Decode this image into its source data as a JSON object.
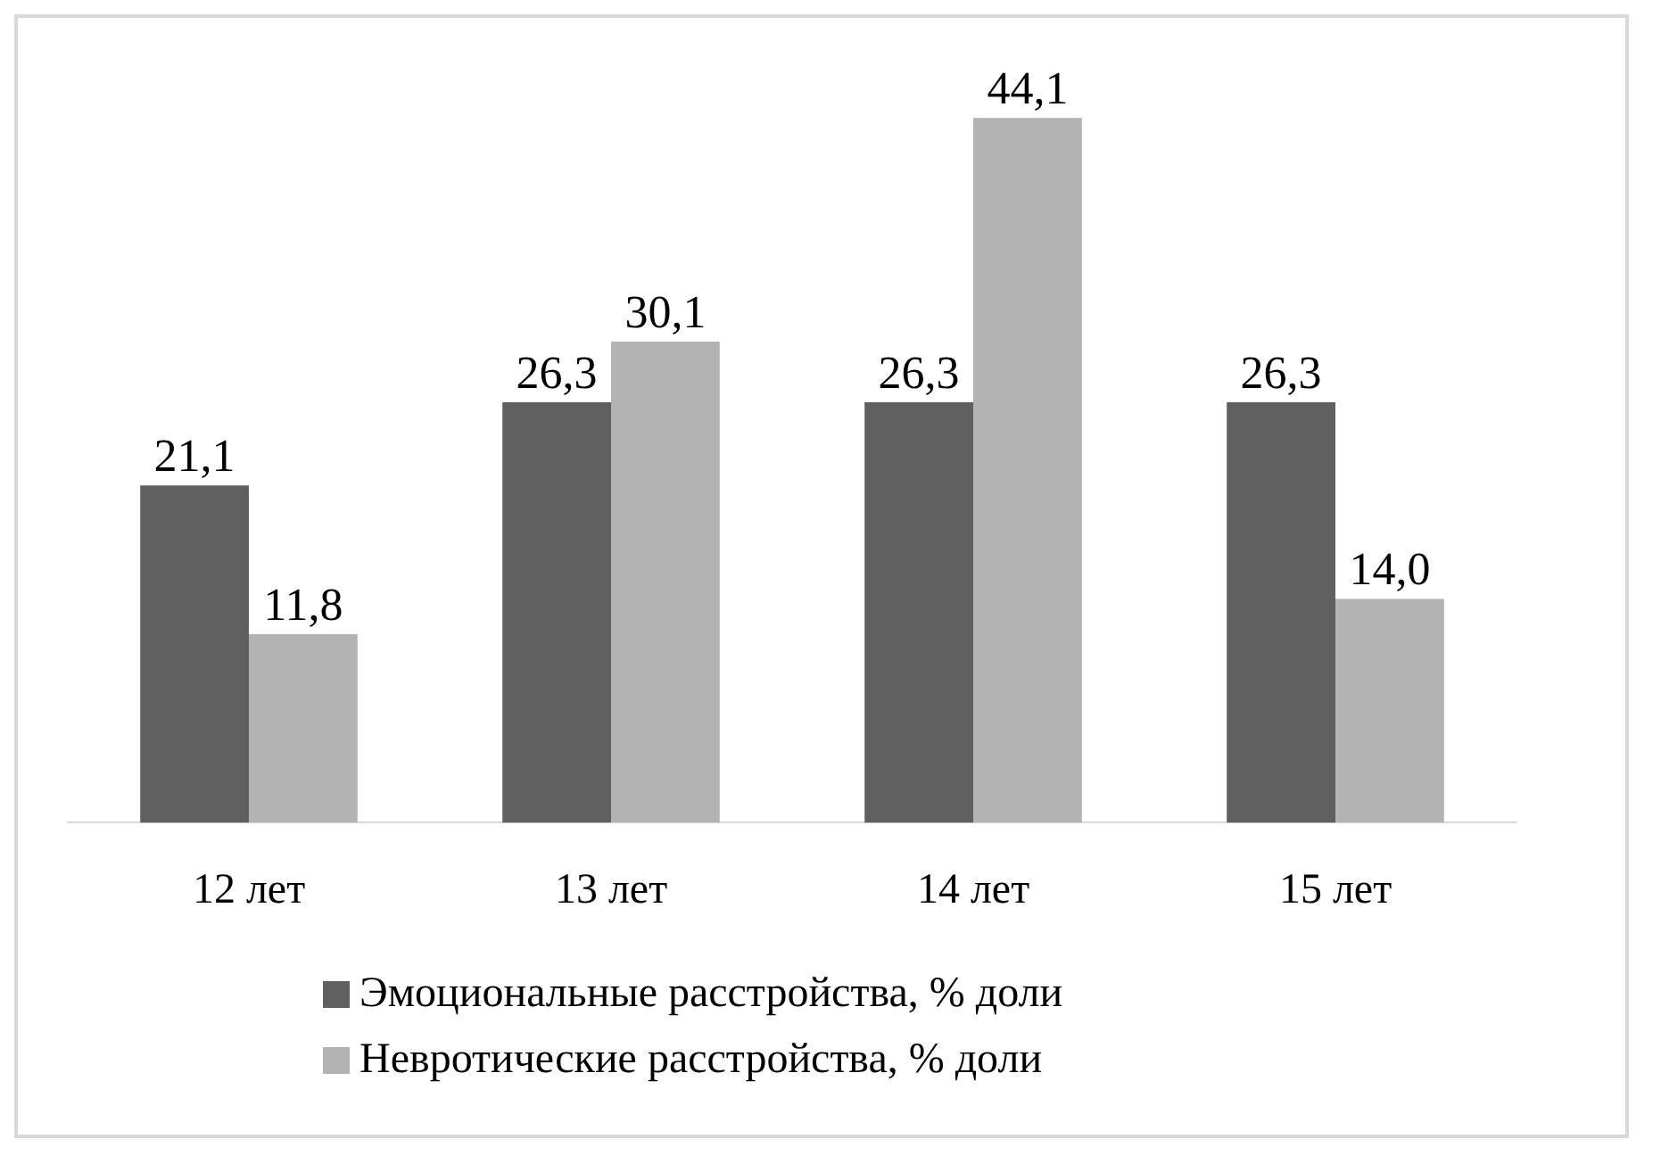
{
  "chart_data": {
    "type": "bar",
    "relative": false,
    "categories": [
      "12 лет",
      "13 лет",
      "14 лет",
      "15 лет"
    ],
    "series": [
      {
        "name": "Эмоциональные расстройства, % доли",
        "color": "#606060",
        "values": [
          21.1,
          26.3,
          26.3,
          26.3
        ],
        "value_labels": [
          "21,1",
          "26,3",
          "26,3",
          "26,3"
        ]
      },
      {
        "name": "Невротические расстройства, % доли",
        "color": "#b3b3b3",
        "values": [
          11.8,
          30.1,
          44.1,
          14.0
        ],
        "value_labels": [
          "11,8",
          "30,1",
          "44,1",
          "14,0"
        ]
      }
    ],
    "legend": "bottom",
    "grid": false
  }
}
